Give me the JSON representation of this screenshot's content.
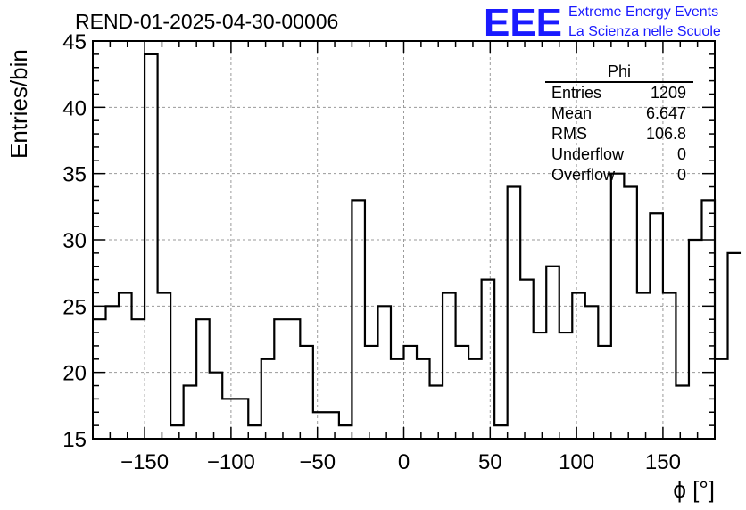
{
  "chart_data": {
    "type": "bar",
    "title": "REND-01-2025-04-30-00006",
    "xlabel": "ϕ [°]",
    "ylabel": "Entries/bin",
    "xlim": [
      -180,
      180
    ],
    "ylim": [
      15,
      45
    ],
    "grid": true,
    "x_ticks": [
      -150,
      -100,
      -50,
      0,
      50,
      100,
      150
    ],
    "x_tick_labels": [
      "−150",
      "−100",
      "−50",
      "0",
      "50",
      "100",
      "150"
    ],
    "y_ticks": [
      15,
      20,
      25,
      30,
      35,
      40,
      45
    ],
    "y_tick_labels": [
      "15",
      "20",
      "25",
      "30",
      "35",
      "40",
      "45"
    ],
    "bin_width": 7.5,
    "values": [
      24,
      25,
      26,
      24,
      44,
      26,
      16,
      19,
      24,
      20,
      18,
      18,
      16,
      21,
      24,
      24,
      22,
      17,
      17,
      16,
      33,
      22,
      25,
      21,
      22,
      21,
      19,
      26,
      22,
      21,
      27,
      16,
      34,
      27,
      23,
      28,
      23,
      26,
      25,
      22,
      35,
      34,
      26,
      32,
      26,
      19,
      30,
      33,
      21,
      29
    ]
  },
  "logo": {
    "mark": "EEE",
    "line1": "Extreme Energy Events",
    "line2": "La Scienza nelle Scuole",
    "color": "#1a1aff"
  },
  "stats_box": {
    "name": "Phi",
    "rows": [
      {
        "label": "Entries",
        "value": "1209"
      },
      {
        "label": "Mean",
        "value": "6.647"
      },
      {
        "label": "RMS",
        "value": "106.8"
      },
      {
        "label": "Underflow",
        "value": "0"
      },
      {
        "label": "Overflow",
        "value": "0"
      }
    ]
  }
}
